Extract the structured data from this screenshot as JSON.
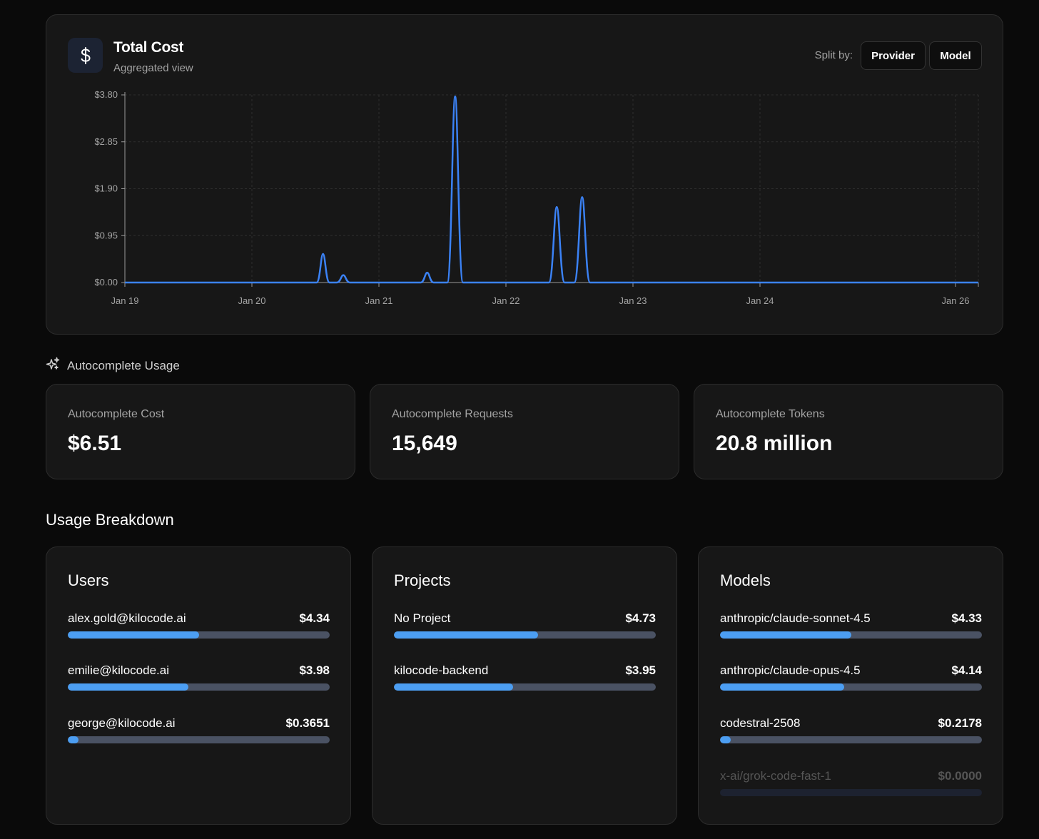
{
  "cost_card": {
    "title": "Total Cost",
    "subtitle": "Aggregated view",
    "icon": "dollar-icon",
    "split_label": "Split by:",
    "split_options": [
      "Provider",
      "Model"
    ]
  },
  "chart_data": {
    "type": "line",
    "title": "Total Cost",
    "y_ticks": [
      "$3.80",
      "$2.85",
      "$1.90",
      "$0.95",
      "$0.00"
    ],
    "x_ticks": [
      "Jan 19",
      "Jan 20",
      "Jan 21",
      "Jan 22",
      "Jan 23",
      "Jan 24",
      "Jan 26"
    ],
    "ylim": [
      0,
      3.8
    ],
    "color": "#3b82f6",
    "spikes": [
      {
        "date": "Jan 20",
        "day_offset": 1.56,
        "value": 0.58
      },
      {
        "date": "Jan 20",
        "day_offset": 1.72,
        "value": 0.15
      },
      {
        "date": "Jan 21",
        "day_offset": 2.38,
        "value": 0.2
      },
      {
        "date": "Jan 21",
        "day_offset": 2.6,
        "value": 3.77
      },
      {
        "date": "Jan 22",
        "day_offset": 3.4,
        "value": 1.53
      },
      {
        "date": "Jan 22",
        "day_offset": 3.6,
        "value": 1.73
      }
    ]
  },
  "autocomplete": {
    "section_label": "Autocomplete Usage",
    "stats": [
      {
        "label": "Autocomplete Cost",
        "value": "$6.51"
      },
      {
        "label": "Autocomplete Requests",
        "value": "15,649"
      },
      {
        "label": "Autocomplete Tokens",
        "value": "20.8 million"
      }
    ]
  },
  "breakdown": {
    "title": "Usage Breakdown",
    "users": {
      "title": "Users",
      "rows": [
        {
          "name": "alex.gold@kilocode.ai",
          "value": "$4.34",
          "fraction": 0.5
        },
        {
          "name": "emilie@kilocode.ai",
          "value": "$3.98",
          "fraction": 0.46
        },
        {
          "name": "george@kilocode.ai",
          "value": "$0.3651",
          "fraction": 0.04
        }
      ]
    },
    "projects": {
      "title": "Projects",
      "rows": [
        {
          "name": "No Project",
          "value": "$4.73",
          "fraction": 0.55
        },
        {
          "name": "kilocode-backend",
          "value": "$3.95",
          "fraction": 0.455
        }
      ]
    },
    "models": {
      "title": "Models",
      "rows": [
        {
          "name": "anthropic/claude-sonnet-4.5",
          "value": "$4.33",
          "fraction": 0.5
        },
        {
          "name": "anthropic/claude-opus-4.5",
          "value": "$4.14",
          "fraction": 0.475
        },
        {
          "name": "codestral-2508",
          "value": "$0.2178",
          "fraction": 0.025
        },
        {
          "name": "x-ai/grok-code-fast-1",
          "value": "$0.0000",
          "fraction": 0
        }
      ]
    }
  }
}
